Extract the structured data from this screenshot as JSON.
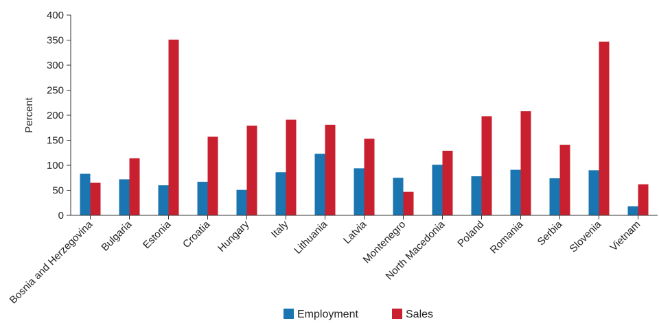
{
  "chart_data": {
    "type": "bar",
    "title": "",
    "xlabel": "",
    "ylabel": "Percent",
    "ylim": [
      0,
      400
    ],
    "yticks": [
      0,
      50,
      100,
      150,
      200,
      250,
      300,
      350,
      400
    ],
    "grid": false,
    "legend_position": "bottom-center",
    "categories": [
      "Bosnia and Herzegovina",
      "Bulgaria",
      "Estonia",
      "Croatia",
      "Hungary",
      "Italy",
      "Lithuania",
      "Latvia",
      "Montenegro",
      "North Macedonia",
      "Poland",
      "Romania",
      "Serbia",
      "Slovenia",
      "Vietnam"
    ],
    "series": [
      {
        "name": "Employment",
        "color": "#1a75b0",
        "values": [
          83,
          72,
          60,
          67,
          51,
          86,
          123,
          94,
          75,
          101,
          78,
          91,
          74,
          90,
          18
        ]
      },
      {
        "name": "Sales",
        "color": "#c8202f",
        "values": [
          65,
          114,
          351,
          157,
          179,
          191,
          181,
          153,
          47,
          129,
          198,
          208,
          141,
          347,
          62
        ]
      }
    ]
  }
}
